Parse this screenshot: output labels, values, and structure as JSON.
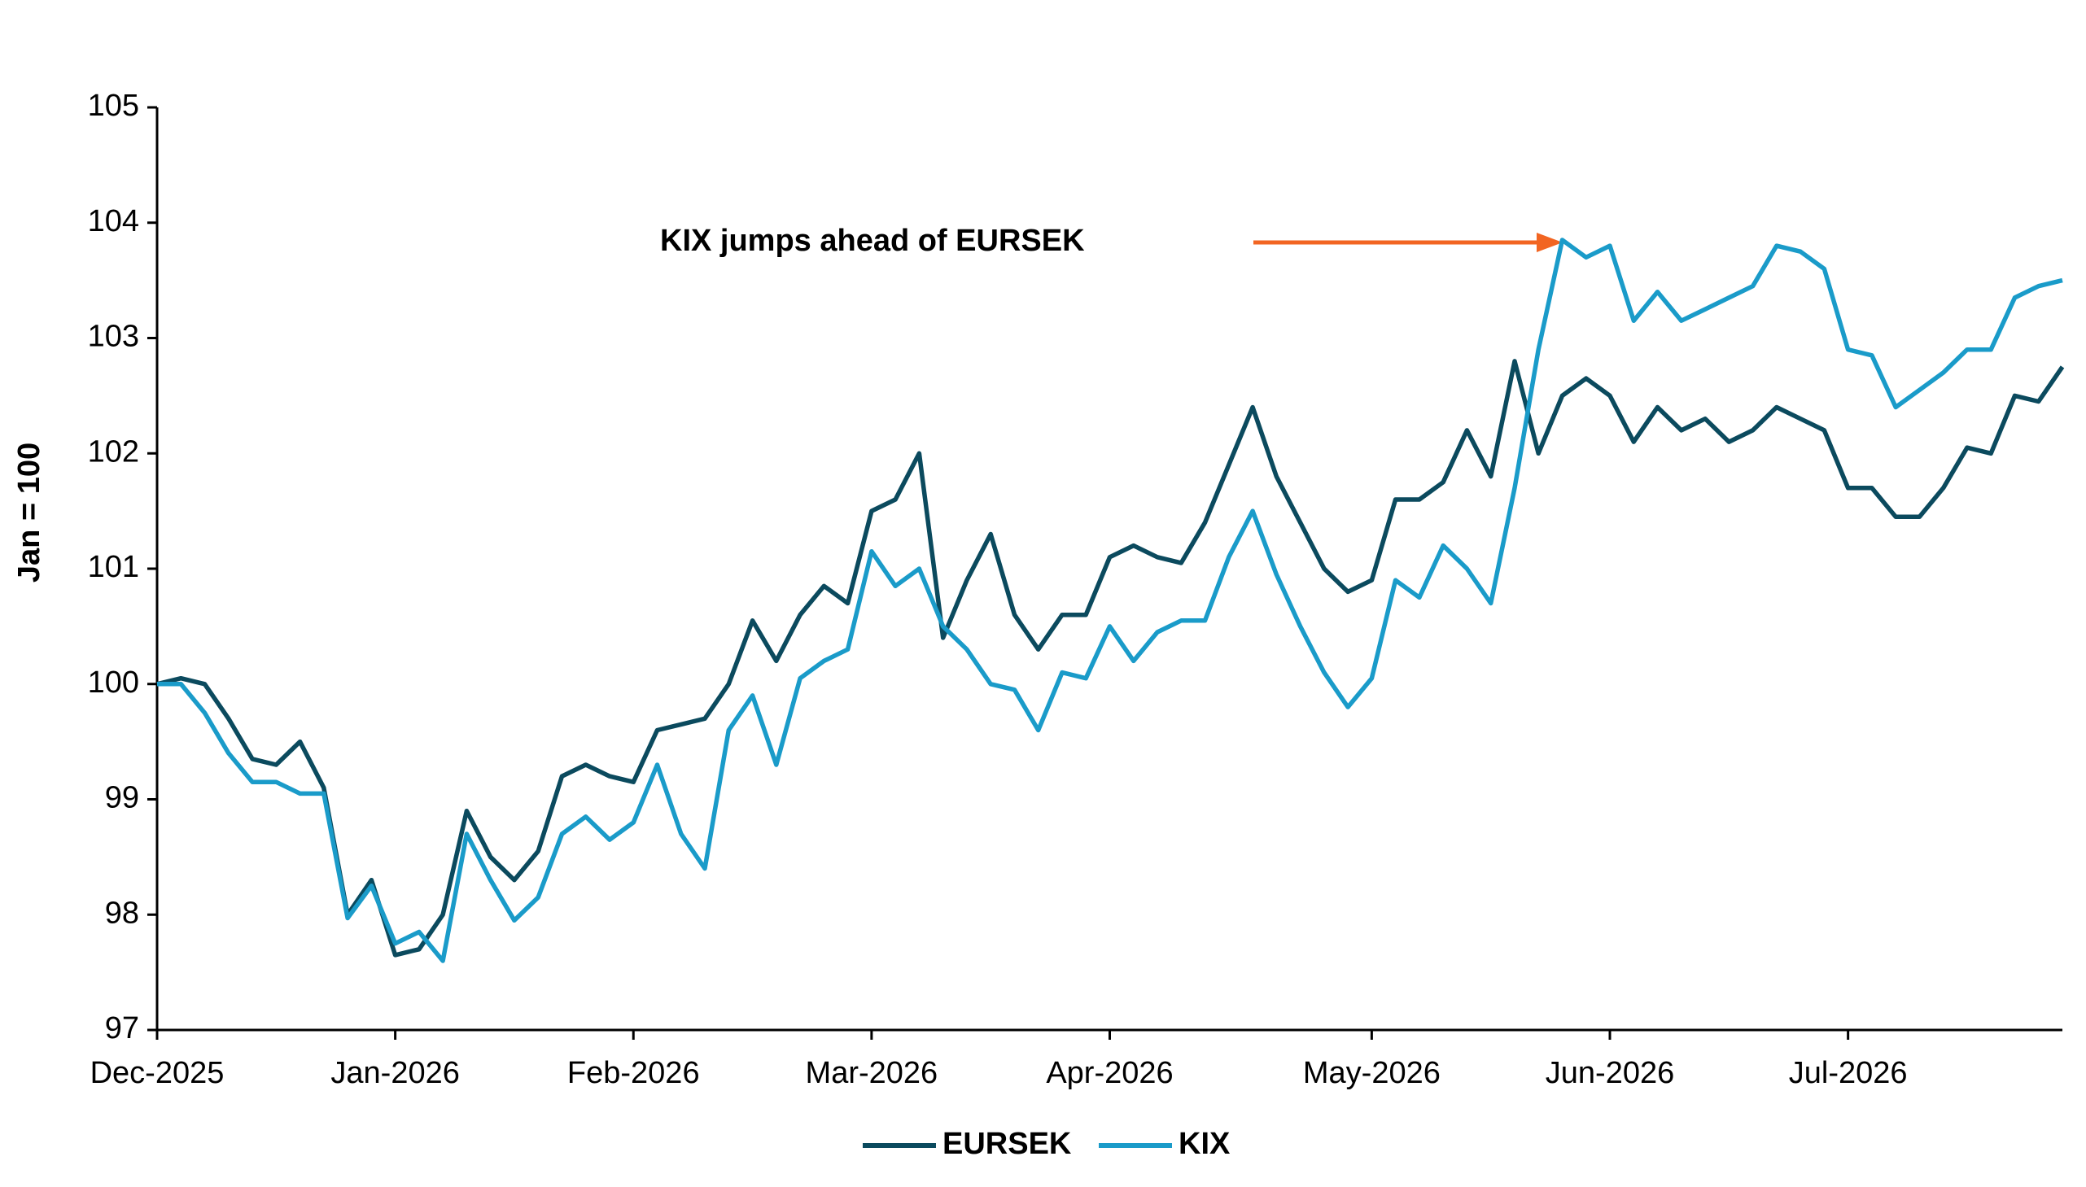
{
  "chart_data": {
    "type": "line",
    "y_label": "Jan = 100",
    "annotations": [
      {
        "text": "KIX jumps ahead of EURSEK"
      }
    ],
    "categories": [
      "Dec-2025",
      null,
      null,
      null,
      null,
      null,
      null,
      null,
      null,
      null,
      "Jan-2026",
      null,
      null,
      null,
      null,
      null,
      null,
      null,
      null,
      null,
      "Feb-2026",
      null,
      null,
      null,
      null,
      null,
      null,
      null,
      null,
      null,
      "Mar-2026",
      null,
      null,
      null,
      null,
      null,
      null,
      null,
      null,
      null,
      "Apr-2026",
      null,
      null,
      null,
      null,
      null,
      null,
      null,
      null,
      null,
      null,
      "May-2026",
      null,
      null,
      null,
      null,
      null,
      null,
      null,
      null,
      null,
      "Jun-2026",
      null,
      null,
      null,
      null,
      null,
      null,
      null,
      null,
      null,
      "Jul-2026",
      null,
      null,
      null,
      null,
      null,
      null,
      null,
      null,
      null
    ],
    "series": [
      {
        "name": "EURSEK",
        "color": "#0b4a5e",
        "values": [
          100,
          100.05,
          100,
          99.7,
          99.35,
          99.3,
          99.5,
          99.1,
          98,
          98.3,
          97.65,
          97.7,
          98,
          98.9,
          98.5,
          98.3,
          98.55,
          99.2,
          99.3,
          99.2,
          99.15,
          99.6,
          99.65,
          99.7,
          100,
          100.55,
          100.2,
          100.6,
          100.85,
          100.7,
          101.5,
          101.6,
          102,
          100.4,
          100.9,
          101.3,
          100.6,
          100.3,
          100.6,
          100.6,
          101.1,
          101.2,
          101.1,
          101.05,
          101.4,
          101.9,
          102.4,
          101.8,
          101.4,
          101,
          100.8,
          100.9,
          101.6,
          101.6,
          101.75,
          102.2,
          101.8,
          102.8,
          102,
          102.5,
          102.65,
          102.5,
          102.1,
          102.4,
          102.2,
          102.3,
          102.1,
          102.2,
          102.4,
          102.3,
          102.2,
          101.7,
          101.7,
          101.45,
          101.45,
          101.7,
          102.05,
          102,
          102.5,
          102.45,
          102.75
        ]
      },
      {
        "name": "KIX",
        "color": "#1a9bc9",
        "values": [
          100,
          100,
          99.75,
          99.4,
          99.15,
          99.15,
          99.05,
          99.05,
          97.97,
          98.25,
          97.75,
          97.85,
          97.6,
          98.7,
          98.3,
          97.95,
          98.15,
          98.7,
          98.85,
          98.65,
          98.8,
          99.3,
          98.7,
          98.4,
          99.6,
          99.9,
          99.3,
          100.05,
          100.2,
          100.3,
          101.15,
          100.85,
          101,
          100.5,
          100.3,
          100,
          99.95,
          99.6,
          100.1,
          100.05,
          100.5,
          100.2,
          100.45,
          100.55,
          100.55,
          101.1,
          101.5,
          100.95,
          100.5,
          100.1,
          99.8,
          100.05,
          100.9,
          100.75,
          101.2,
          101,
          100.7,
          101.7,
          102.9,
          103.85,
          103.7,
          103.8,
          103.15,
          103.4,
          103.15,
          103.25,
          103.35,
          103.45,
          103.8,
          103.75,
          103.6,
          102.9,
          102.85,
          102.4,
          102.55,
          102.7,
          102.9,
          102.9,
          103.35,
          103.45,
          103.5
        ]
      }
    ],
    "ylim": [
      97,
      105
    ],
    "yticks": [
      97,
      98,
      99,
      100,
      101,
      102,
      103,
      104,
      105
    ],
    "grid": false,
    "legend": "bottom"
  }
}
